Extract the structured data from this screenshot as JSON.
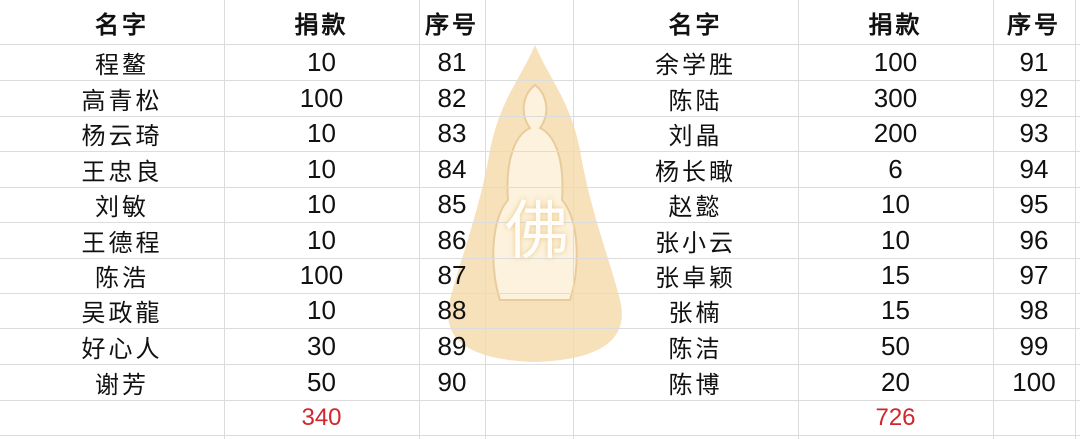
{
  "headers": {
    "name": "名字",
    "amount": "捐款",
    "seq": "序号"
  },
  "left_table": {
    "rows": [
      {
        "name": "程鳌",
        "amount": "10",
        "seq": "81"
      },
      {
        "name": "高青松",
        "amount": "100",
        "seq": "82"
      },
      {
        "name": "杨云琦",
        "amount": "10",
        "seq": "83"
      },
      {
        "name": "王忠良",
        "amount": "10",
        "seq": "84"
      },
      {
        "name": "刘敏",
        "amount": "10",
        "seq": "85"
      },
      {
        "name": "王德程",
        "amount": "10",
        "seq": "86"
      },
      {
        "name": "陈浩",
        "amount": "100",
        "seq": "87"
      },
      {
        "name": "吴政龍",
        "amount": "10",
        "seq": "88"
      },
      {
        "name": "好心人",
        "amount": "30",
        "seq": "89"
      },
      {
        "name": "谢芳",
        "amount": "50",
        "seq": "90"
      }
    ],
    "total": "340"
  },
  "right_table": {
    "rows": [
      {
        "name": "余学胜",
        "amount": "100",
        "seq": "91"
      },
      {
        "name": "陈陆",
        "amount": "300",
        "seq": "92"
      },
      {
        "name": "刘晶",
        "amount": "200",
        "seq": "93"
      },
      {
        "name": "杨长瞰",
        "amount": "6",
        "seq": "94"
      },
      {
        "name": "赵懿",
        "amount": "10",
        "seq": "95"
      },
      {
        "name": "张小云",
        "amount": "10",
        "seq": "96"
      },
      {
        "name": "张卓颖",
        "amount": "15",
        "seq": "97"
      },
      {
        "name": "张楠",
        "amount": "15",
        "seq": "98"
      },
      {
        "name": "陈洁",
        "amount": "50",
        "seq": "99"
      },
      {
        "name": "陈博",
        "amount": "20",
        "seq": "100"
      }
    ],
    "total": "726"
  },
  "watermark": {
    "text": "佛",
    "color": "#e8b860"
  },
  "colors": {
    "total": "#d0262e",
    "grid": "#dcdcdc"
  }
}
